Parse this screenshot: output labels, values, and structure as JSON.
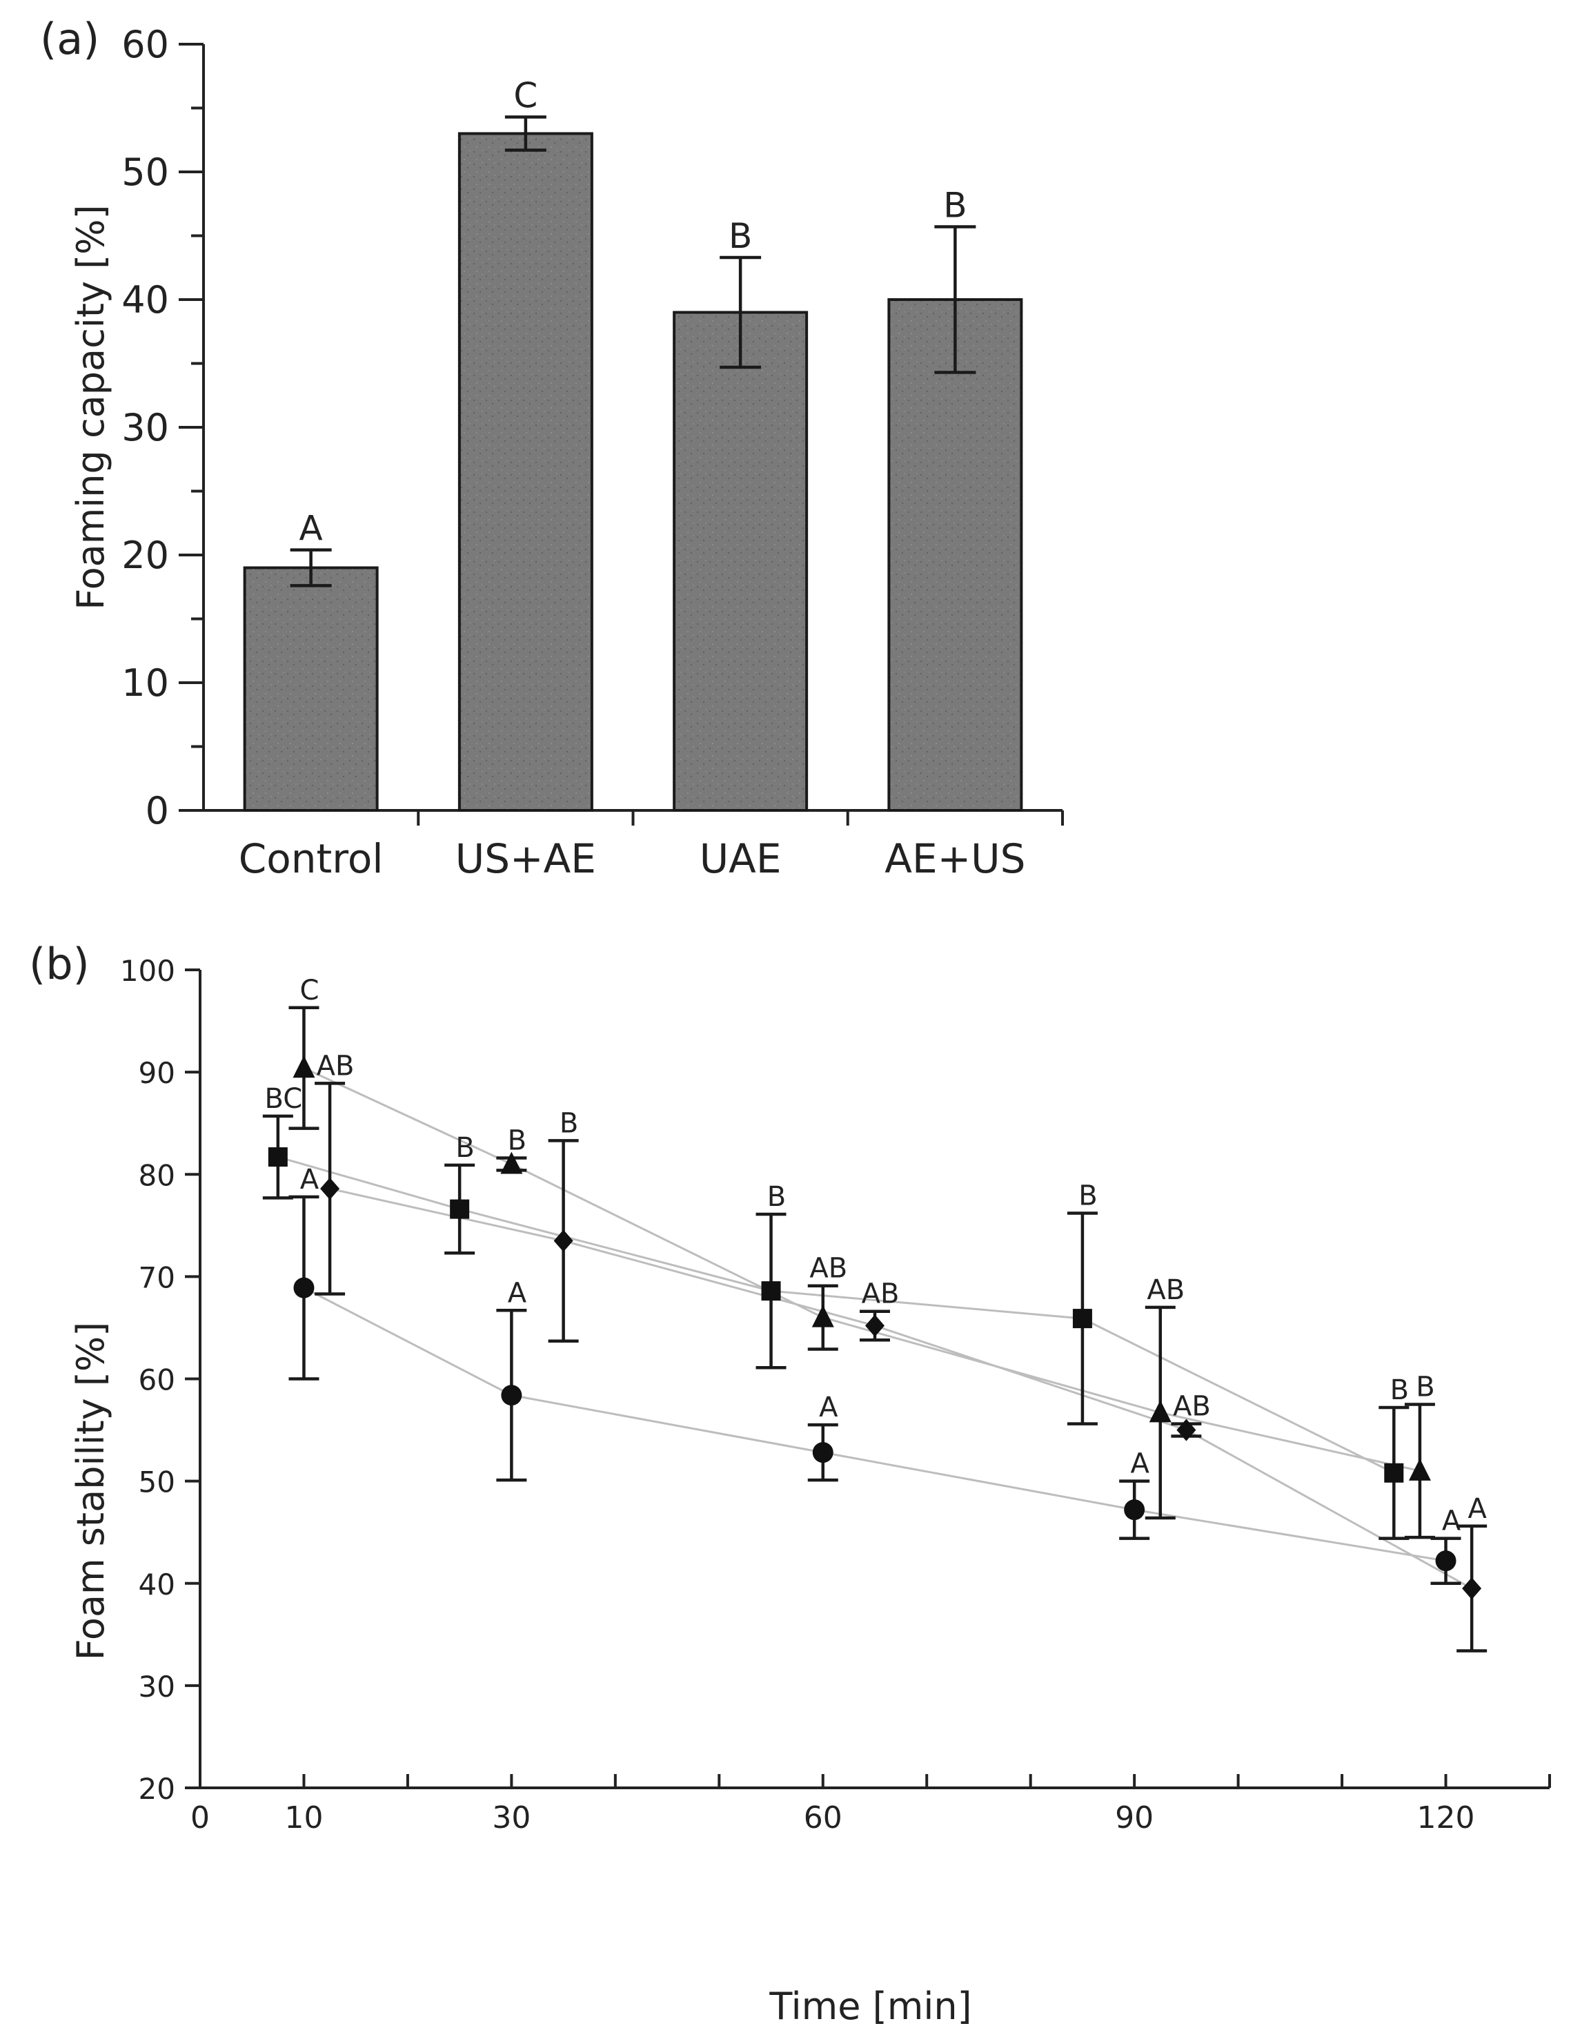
{
  "chart_data": [
    {
      "panel_label": "(a)",
      "type": "bar",
      "ylabel": "Foaming capacity [%]",
      "xlabel": "",
      "ylim": [
        0,
        60
      ],
      "yticks": [
        0,
        10,
        20,
        30,
        40,
        50,
        60
      ],
      "categories": [
        "Control",
        "US+AE",
        "UAE",
        "AE+US"
      ],
      "values": [
        19,
        53,
        39,
        40
      ],
      "errors": [
        1.4,
        1.3,
        4.3,
        5.7
      ],
      "letters": [
        "A",
        "C",
        "B",
        "B"
      ],
      "bar_color": "#7a7a7a"
    },
    {
      "panel_label": "(b)",
      "type": "scatter",
      "ylabel": "Foam stability [%]",
      "xlabel": "Time [min]",
      "xlim": [
        0,
        130
      ],
      "ylim": [
        20,
        100
      ],
      "xticks_labeled": [
        0,
        10,
        30,
        60,
        90,
        120
      ],
      "xticks_minor": [
        20,
        40,
        50,
        70,
        80,
        100,
        110,
        130
      ],
      "yticks": [
        20,
        30,
        40,
        50,
        60,
        70,
        80,
        90,
        100
      ],
      "series": [
        {
          "name": "square",
          "marker": "square",
          "points": [
            {
              "x": 7.5,
              "y": 81.7,
              "err": 4,
              "label": "BC"
            },
            {
              "x": 25,
              "y": 76.6,
              "err": 4.3,
              "label": "B"
            },
            {
              "x": 55,
              "y": 68.6,
              "err": 7.5,
              "label": "B"
            },
            {
              "x": 85,
              "y": 65.9,
              "err": 10.3,
              "label": "B"
            },
            {
              "x": 115,
              "y": 50.8,
              "err": 6.4,
              "label": "B"
            }
          ]
        },
        {
          "name": "circle",
          "marker": "circle",
          "points": [
            {
              "x": 10,
              "y": 68.9,
              "err": 8.9,
              "label": "A"
            },
            {
              "x": 30,
              "y": 58.4,
              "err": 8.3,
              "label": "A"
            },
            {
              "x": 60,
              "y": 52.8,
              "err": 2.7,
              "label": "A"
            },
            {
              "x": 90,
              "y": 47.2,
              "err": 2.8,
              "label": "A"
            },
            {
              "x": 120,
              "y": 42.2,
              "err": 2.2,
              "label": "A"
            }
          ]
        },
        {
          "name": "triangle",
          "marker": "triangle",
          "points": [
            {
              "x": 10,
              "y": 90.4,
              "err": 5.9,
              "label": "C"
            },
            {
              "x": 30,
              "y": 81.0,
              "err": 0.6,
              "label": "B"
            },
            {
              "x": 60,
              "y": 66.0,
              "err": 3.1,
              "label": "AB"
            },
            {
              "x": 92.5,
              "y": 56.7,
              "err": 10.3,
              "label": "AB"
            },
            {
              "x": 117.5,
              "y": 51.0,
              "err": 6.5,
              "label": "B"
            }
          ]
        },
        {
          "name": "diamond",
          "marker": "diamond",
          "points": [
            {
              "x": 12.5,
              "y": 78.6,
              "err": 10.3,
              "label": "AB"
            },
            {
              "x": 35,
              "y": 73.5,
              "err": 9.8,
              "label": "B"
            },
            {
              "x": 65,
              "y": 65.2,
              "err": 1.4,
              "label": "AB"
            },
            {
              "x": 95,
              "y": 55.0,
              "err": 0.6,
              "label": "AB"
            },
            {
              "x": 122.5,
              "y": 39.5,
              "err": 6.1,
              "label": "A"
            }
          ]
        }
      ]
    }
  ]
}
